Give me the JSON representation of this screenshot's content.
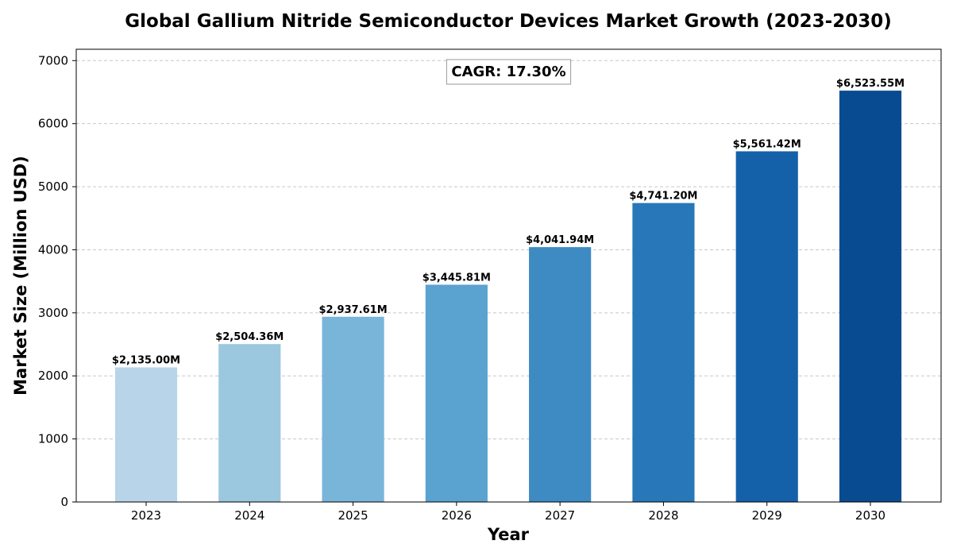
{
  "chart_data": {
    "type": "bar",
    "title": "Global Gallium Nitride Semiconductor Devices Market Growth (2023-2030)",
    "xlabel": "Year",
    "ylabel": "Market Size (Million USD)",
    "categories": [
      "2023",
      "2024",
      "2025",
      "2026",
      "2027",
      "2028",
      "2029",
      "2030"
    ],
    "values": [
      2135.0,
      2504.36,
      2937.61,
      3445.81,
      4041.94,
      4741.2,
      5561.42,
      6523.55
    ],
    "data_labels": [
      "$2,135.00M",
      "$2,504.36M",
      "$2,937.61M",
      "$3,445.81M",
      "$4,041.94M",
      "$4,741.20M",
      "$5,561.42M",
      "$6,523.55M"
    ],
    "bar_colors": [
      "#b8d4e9",
      "#9bc7df",
      "#79b5d8",
      "#5aa2cf",
      "#3e8bc3",
      "#2878b9",
      "#1461aa",
      "#084b91"
    ],
    "ylim": [
      0,
      7180
    ],
    "yticks": [
      0,
      1000,
      2000,
      3000,
      4000,
      5000,
      6000,
      7000
    ],
    "grid": true,
    "annotation": {
      "text": "CAGR: 17.30%",
      "placement": "top-center"
    }
  }
}
